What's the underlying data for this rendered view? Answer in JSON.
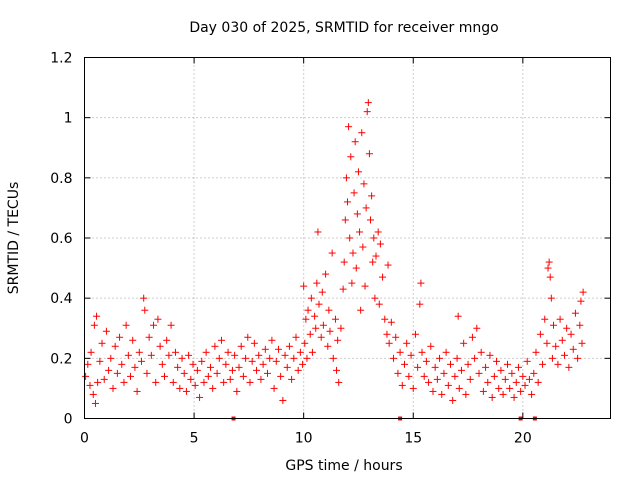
{
  "chart_data": {
    "type": "scatter",
    "title": "Day 030 of 2025, SRMTID for receiver mngo",
    "xlabel": "GPS time / hours",
    "ylabel": "SRMTID / TECUs",
    "xlim": [
      0,
      24
    ],
    "ylim": [
      0,
      1.2
    ],
    "grid": true,
    "marker": "plus",
    "color": "#ff0000",
    "x_ticks": [
      {
        "value": 0,
        "label": "0"
      },
      {
        "value": 5,
        "label": "5"
      },
      {
        "value": 10,
        "label": "10"
      },
      {
        "value": 15,
        "label": "15"
      },
      {
        "value": 20,
        "label": "20"
      }
    ],
    "y_ticks": [
      {
        "value": 0,
        "label": "0"
      },
      {
        "value": 0.2,
        "label": "0.2"
      },
      {
        "value": 0.4,
        "label": "0.4"
      },
      {
        "value": 0.6,
        "label": "0.6"
      },
      {
        "value": 0.8,
        "label": "0.8"
      },
      {
        "value": 1.0,
        "label": "1"
      },
      {
        "value": 1.2,
        "label": "1.2"
      }
    ],
    "series": [
      {
        "name": "SRMTID",
        "points": [
          [
            0.05,
            0.14
          ],
          [
            0.15,
            0.18
          ],
          [
            0.25,
            0.11
          ],
          [
            0.3,
            0.22
          ],
          [
            0.4,
            0.08
          ],
          [
            0.45,
            0.31
          ],
          [
            0.5,
            0.05
          ],
          [
            0.55,
            0.34
          ],
          [
            0.6,
            0.12
          ],
          [
            0.7,
            0.19
          ],
          [
            0.8,
            0.25
          ],
          [
            0.9,
            0.13
          ],
          [
            1.0,
            0.29
          ],
          [
            1.1,
            0.16
          ],
          [
            1.2,
            0.2
          ],
          [
            1.3,
            0.1
          ],
          [
            1.4,
            0.24
          ],
          [
            1.5,
            0.15
          ],
          [
            1.6,
            0.27
          ],
          [
            1.7,
            0.18
          ],
          [
            1.8,
            0.12
          ],
          [
            1.9,
            0.31
          ],
          [
            2.0,
            0.21
          ],
          [
            2.1,
            0.14
          ],
          [
            2.2,
            0.26
          ],
          [
            2.3,
            0.17
          ],
          [
            2.4,
            0.09
          ],
          [
            2.5,
            0.22
          ],
          [
            2.6,
            0.19
          ],
          [
            2.7,
            0.4
          ],
          [
            2.75,
            0.36
          ],
          [
            2.85,
            0.15
          ],
          [
            2.95,
            0.27
          ],
          [
            3.05,
            0.21
          ],
          [
            3.15,
            0.31
          ],
          [
            3.25,
            0.12
          ],
          [
            3.35,
            0.33
          ],
          [
            3.45,
            0.24
          ],
          [
            3.55,
            0.18
          ],
          [
            3.65,
            0.14
          ],
          [
            3.75,
            0.26
          ],
          [
            3.85,
            0.21
          ],
          [
            3.95,
            0.31
          ],
          [
            4.05,
            0.12
          ],
          [
            4.15,
            0.22
          ],
          [
            4.25,
            0.17
          ],
          [
            4.35,
            0.1
          ],
          [
            4.45,
            0.2
          ],
          [
            4.55,
            0.15
          ],
          [
            4.65,
            0.09
          ],
          [
            4.75,
            0.21
          ],
          [
            4.85,
            0.13
          ],
          [
            4.95,
            0.18
          ],
          [
            5.05,
            0.11
          ],
          [
            5.15,
            0.16
          ],
          [
            5.25,
            0.07
          ],
          [
            5.35,
            0.19
          ],
          [
            5.45,
            0.12
          ],
          [
            5.55,
            0.22
          ],
          [
            5.65,
            0.14
          ],
          [
            5.75,
            0.17
          ],
          [
            5.85,
            0.1
          ],
          [
            5.95,
            0.24
          ],
          [
            6.05,
            0.15
          ],
          [
            6.15,
            0.2
          ],
          [
            6.25,
            0.26
          ],
          [
            6.35,
            0.12
          ],
          [
            6.45,
            0.18
          ],
          [
            6.55,
            0.22
          ],
          [
            6.65,
            0.13
          ],
          [
            6.75,
            0.16
          ],
          [
            6.85,
            0.21
          ],
          [
            6.95,
            0.09
          ],
          [
            7.05,
            0.17
          ],
          [
            7.15,
            0.24
          ],
          [
            7.25,
            0.14
          ],
          [
            7.35,
            0.2
          ],
          [
            7.45,
            0.27
          ],
          [
            7.55,
            0.12
          ],
          [
            7.65,
            0.19
          ],
          [
            7.75,
            0.25
          ],
          [
            7.85,
            0.16
          ],
          [
            7.95,
            0.21
          ],
          [
            8.05,
            0.13
          ],
          [
            8.15,
            0.18
          ],
          [
            8.25,
            0.23
          ],
          [
            8.35,
            0.15
          ],
          [
            8.45,
            0.2
          ],
          [
            8.55,
            0.26
          ],
          [
            8.65,
            0.1
          ],
          [
            8.75,
            0.19
          ],
          [
            8.85,
            0.23
          ],
          [
            8.95,
            0.14
          ],
          [
            9.05,
            0.06
          ],
          [
            9.15,
            0.21
          ],
          [
            9.25,
            0.17
          ],
          [
            9.35,
            0.24
          ],
          [
            9.45,
            0.13
          ],
          [
            9.55,
            0.2
          ],
          [
            9.65,
            0.27
          ],
          [
            9.75,
            0.16
          ],
          [
            9.85,
            0.22
          ],
          [
            9.95,
            0.18
          ],
          [
            10.0,
            0.44
          ],
          [
            10.05,
            0.25
          ],
          [
            10.1,
            0.33
          ],
          [
            10.15,
            0.2
          ],
          [
            10.2,
            0.36
          ],
          [
            10.3,
            0.28
          ],
          [
            10.35,
            0.4
          ],
          [
            10.4,
            0.22
          ],
          [
            10.5,
            0.34
          ],
          [
            10.55,
            0.3
          ],
          [
            10.6,
            0.45
          ],
          [
            10.65,
            0.62
          ],
          [
            10.7,
            0.38
          ],
          [
            10.8,
            0.27
          ],
          [
            10.85,
            0.42
          ],
          [
            10.9,
            0.31
          ],
          [
            11.0,
            0.48
          ],
          [
            11.1,
            0.24
          ],
          [
            11.15,
            0.36
          ],
          [
            11.2,
            0.29
          ],
          [
            11.3,
            0.55
          ],
          [
            11.35,
            0.2
          ],
          [
            11.45,
            0.33
          ],
          [
            11.5,
            0.16
          ],
          [
            11.55,
            0.26
          ],
          [
            11.6,
            0.12
          ],
          [
            11.7,
            0.3
          ],
          [
            11.8,
            0.43
          ],
          [
            11.85,
            0.52
          ],
          [
            11.9,
            0.66
          ],
          [
            11.95,
            0.8
          ],
          [
            12.0,
            0.72
          ],
          [
            12.05,
            0.97
          ],
          [
            12.1,
            0.6
          ],
          [
            12.15,
            0.87
          ],
          [
            12.2,
            0.45
          ],
          [
            12.25,
            0.55
          ],
          [
            12.3,
            0.75
          ],
          [
            12.35,
            0.92
          ],
          [
            12.4,
            0.5
          ],
          [
            12.45,
            0.68
          ],
          [
            12.5,
            0.82
          ],
          [
            12.55,
            0.62
          ],
          [
            12.6,
            0.36
          ],
          [
            12.65,
            0.95
          ],
          [
            12.7,
            0.57
          ],
          [
            12.75,
            0.78
          ],
          [
            12.8,
            0.44
          ],
          [
            12.85,
            0.7
          ],
          [
            12.9,
            1.02
          ],
          [
            12.95,
            1.05
          ],
          [
            13.0,
            0.88
          ],
          [
            13.05,
            0.66
          ],
          [
            13.1,
            0.74
          ],
          [
            13.15,
            0.52
          ],
          [
            13.2,
            0.6
          ],
          [
            13.25,
            0.4
          ],
          [
            13.3,
            0.54
          ],
          [
            13.4,
            0.62
          ],
          [
            13.45,
            0.38
          ],
          [
            13.5,
            0.58
          ],
          [
            13.6,
            0.47
          ],
          [
            13.7,
            0.33
          ],
          [
            13.8,
            0.28
          ],
          [
            13.85,
            0.51
          ],
          [
            13.9,
            0.25
          ],
          [
            14.0,
            0.32
          ],
          [
            14.1,
            0.2
          ],
          [
            14.2,
            0.27
          ],
          [
            14.3,
            0.15
          ],
          [
            14.4,
            0.22
          ],
          [
            14.5,
            0.11
          ],
          [
            14.6,
            0.18
          ],
          [
            14.7,
            0.25
          ],
          [
            14.8,
            0.14
          ],
          [
            14.9,
            0.21
          ],
          [
            15.0,
            0.1
          ],
          [
            15.1,
            0.28
          ],
          [
            15.2,
            0.17
          ],
          [
            15.3,
            0.38
          ],
          [
            15.35,
            0.45
          ],
          [
            15.4,
            0.22
          ],
          [
            15.5,
            0.14
          ],
          [
            15.6,
            0.19
          ],
          [
            15.7,
            0.12
          ],
          [
            15.8,
            0.24
          ],
          [
            15.9,
            0.09
          ],
          [
            16.0,
            0.17
          ],
          [
            16.1,
            0.13
          ],
          [
            16.2,
            0.2
          ],
          [
            16.3,
            0.08
          ],
          [
            16.4,
            0.15
          ],
          [
            16.5,
            0.22
          ],
          [
            16.6,
            0.11
          ],
          [
            16.7,
            0.18
          ],
          [
            16.8,
            0.06
          ],
          [
            16.9,
            0.14
          ],
          [
            17.0,
            0.2
          ],
          [
            17.05,
            0.34
          ],
          [
            17.1,
            0.1
          ],
          [
            17.2,
            0.16
          ],
          [
            17.3,
            0.25
          ],
          [
            17.4,
            0.08
          ],
          [
            17.5,
            0.18
          ],
          [
            17.6,
            0.13
          ],
          [
            17.7,
            0.27
          ],
          [
            17.8,
            0.2
          ],
          [
            17.9,
            0.3
          ],
          [
            18.0,
            0.15
          ],
          [
            18.1,
            0.22
          ],
          [
            18.2,
            0.09
          ],
          [
            18.3,
            0.17
          ],
          [
            18.4,
            0.12
          ],
          [
            18.5,
            0.21
          ],
          [
            18.6,
            0.07
          ],
          [
            18.7,
            0.14
          ],
          [
            18.8,
            0.19
          ],
          [
            18.9,
            0.1
          ],
          [
            19.0,
            0.16
          ],
          [
            19.1,
            0.08
          ],
          [
            19.2,
            0.13
          ],
          [
            19.3,
            0.18
          ],
          [
            19.4,
            0.1
          ],
          [
            19.5,
            0.15
          ],
          [
            19.6,
            0.07
          ],
          [
            19.7,
            0.12
          ],
          [
            19.8,
            0.17
          ],
          [
            19.9,
            0.09
          ],
          [
            20.0,
            0.14
          ],
          [
            20.1,
            0.11
          ],
          [
            20.2,
            0.19
          ],
          [
            20.3,
            0.13
          ],
          [
            20.4,
            0.08
          ],
          [
            20.5,
            0.15
          ],
          [
            20.6,
            0.22
          ],
          [
            20.7,
            0.12
          ],
          [
            20.8,
            0.28
          ],
          [
            20.9,
            0.18
          ],
          [
            21.0,
            0.33
          ],
          [
            21.1,
            0.25
          ],
          [
            21.15,
            0.5
          ],
          [
            21.2,
            0.52
          ],
          [
            21.25,
            0.47
          ],
          [
            21.3,
            0.4
          ],
          [
            21.35,
            0.2
          ],
          [
            21.4,
            0.31
          ],
          [
            21.5,
            0.24
          ],
          [
            21.6,
            0.18
          ],
          [
            21.7,
            0.33
          ],
          [
            21.8,
            0.26
          ],
          [
            21.9,
            0.21
          ],
          [
            22.0,
            0.3
          ],
          [
            22.1,
            0.17
          ],
          [
            22.2,
            0.28
          ],
          [
            22.3,
            0.23
          ],
          [
            22.4,
            0.35
          ],
          [
            22.5,
            0.2
          ],
          [
            22.6,
            0.31
          ],
          [
            22.65,
            0.39
          ],
          [
            22.7,
            0.25
          ],
          [
            22.75,
            0.42
          ]
        ]
      }
    ],
    "axis_markers": [
      {
        "x": 6.8
      },
      {
        "x": 14.4
      },
      {
        "x": 19.9
      },
      {
        "x": 20.55
      }
    ]
  }
}
